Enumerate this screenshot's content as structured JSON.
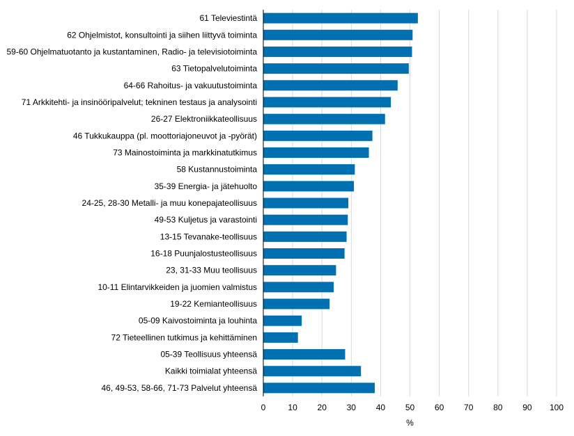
{
  "chart_data": {
    "type": "bar",
    "orientation": "horizontal",
    "categories": [
      "61 Televiestintä",
      "62 Ohjelmistot, konsultointi ja siihen liittyvä toiminta",
      "59-60 Ohjelmatuotanto ja kustantaminen, Radio- ja televisiotoiminta",
      "63 Tietopalvelutoiminta",
      "64-66 Rahoitus- ja vakuutustoiminta",
      "71 Arkkitehti- ja insinööripalvelut; tekninen testaus ja analysointi",
      "26-27 Elektroniikkateollisuus",
      "46 Tukkukauppa (pl. moottoriajoneuvot ja -pyörät)",
      "73 Mainostoiminta ja markkinatutkimus",
      "58 Kustannustoiminta",
      "35-39 Energia- ja jätehuolto",
      "24-25, 28-30 Metalli- ja muu konepajateollisuus",
      "49-53 Kuljetus ja varastointi",
      "13-15 Tevanake-teollisuus",
      "16-18 Puunjalostusteollisuus",
      "23, 31-33 Muu teollisuus",
      "10-11 Elintarvikkeiden ja juomien valmistus",
      "19-22 Kemianteollisuus",
      "05-09 Kaivostoiminta ja louhinta",
      "72 Tieteellinen tutkimus ja kehittäminen",
      "05-39 Teollisuus yhteensä",
      "Kaikki toimialat yhteensä",
      "46, 49-53, 58-66, 71-73 Palvelut yhteensä"
    ],
    "values": [
      52.7,
      50.9,
      50.7,
      49.6,
      45.8,
      43.5,
      41.5,
      37.2,
      36.0,
      31.2,
      30.9,
      29.0,
      28.8,
      28.4,
      27.7,
      24.8,
      24.0,
      22.6,
      13.1,
      11.8,
      27.9,
      33.3,
      38.0
    ],
    "xlabel": "%",
    "ylabel": "",
    "xlim": [
      0,
      100
    ],
    "xticks": [
      "0",
      "10",
      "20",
      "30",
      "40",
      "50",
      "60",
      "70",
      "80",
      "90",
      "100"
    ],
    "grid": "vertical",
    "legend": "none",
    "bar_color": "#0070b0",
    "grid_color": "#d9d9d9",
    "axis_color": "#000000"
  }
}
